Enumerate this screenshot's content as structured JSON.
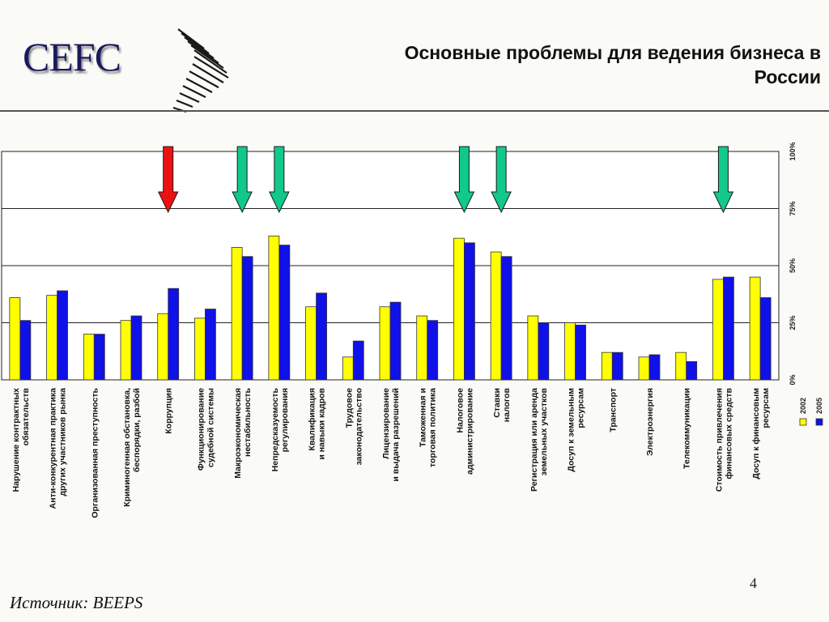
{
  "header": {
    "logo_text": "CEFC",
    "title_line1": "Основные проблемы для ведения бизнеса в",
    "title_line2": "России"
  },
  "footer": {
    "source": "Источник: BEEPS",
    "page_number": "4"
  },
  "colors": {
    "series_2002": "#ffff00",
    "series_2005": "#1010e8",
    "arrow_red": "#ee1111",
    "arrow_green": "#11c98a"
  },
  "chart_data": {
    "type": "bar",
    "y_tick_labels": [
      "0%",
      "25%",
      "50%",
      "75%",
      "100%"
    ],
    "ylim": [
      0,
      100
    ],
    "grid": true,
    "legend_position": "bottom-right",
    "categories": [
      [
        "Нарушение контрактных",
        "обязательств"
      ],
      [
        "Анти-конкурентная практика",
        "других участников рынка"
      ],
      [
        "Организованная преступность"
      ],
      [
        "Криминогенная обстановка,",
        "беспорядки, разбой"
      ],
      [
        "Коррупция"
      ],
      [
        "Функционирование",
        "судебной системы"
      ],
      [
        "Макроэкономическая",
        "нестабильность"
      ],
      [
        "Непредсказуемость",
        "регулирования"
      ],
      [
        "Квалификация",
        "и навыки кадров"
      ],
      [
        "Трудовое",
        "законодательство"
      ],
      [
        "Лицензирование",
        "и выдача разрешений"
      ],
      [
        "Таможенная и",
        "торговая политика"
      ],
      [
        "Налоговое",
        "администрирование"
      ],
      [
        "Ставки",
        "налогов"
      ],
      [
        "Регистрация или аренда",
        "земельных участков"
      ],
      [
        "Досуп к земельным",
        "ресурсам"
      ],
      [
        "Транспорт"
      ],
      [
        "Электроэнергия"
      ],
      [
        "Телекоммуникации"
      ],
      [
        "Стоимость привлечения",
        "финансовых средств"
      ],
      [
        "Досуп к финансовым",
        "ресурсам"
      ]
    ],
    "series": [
      {
        "name": "2002",
        "values": [
          36,
          37,
          20,
          26,
          29,
          27,
          58,
          63,
          32,
          10,
          32,
          28,
          62,
          56,
          28,
          25,
          12,
          10,
          12,
          44,
          45
        ]
      },
      {
        "name": "2005",
        "values": [
          26,
          39,
          20,
          28,
          40,
          31,
          54,
          59,
          38,
          17,
          34,
          26,
          60,
          54,
          25,
          24,
          12,
          11,
          8,
          45,
          36
        ]
      }
    ],
    "arrows": [
      {
        "category_index": 4,
        "color": "red"
      },
      {
        "category_index": 6,
        "color": "green"
      },
      {
        "category_index": 7,
        "color": "green"
      },
      {
        "category_index": 12,
        "color": "green"
      },
      {
        "category_index": 13,
        "color": "green"
      },
      {
        "category_index": 19,
        "color": "green"
      }
    ]
  }
}
